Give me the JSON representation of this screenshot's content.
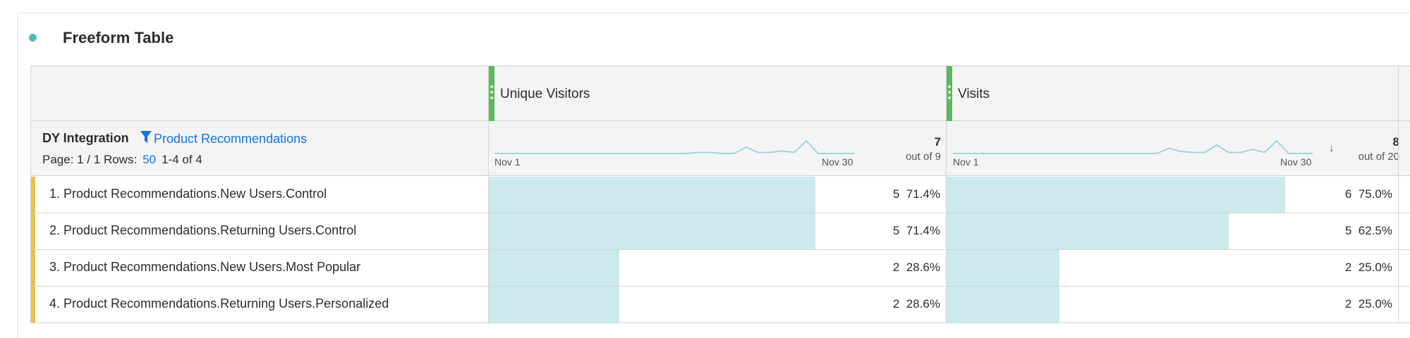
{
  "panel": {
    "title": "Freeform Table"
  },
  "dimension": {
    "title": "DY Integration",
    "filter_label": "Product Recommendations",
    "page_text": "Page: 1 / 1 Rows:",
    "rows_value": "50",
    "range_text": "1-4 of 4"
  },
  "columns": [
    {
      "title": "Unique Visitors",
      "total": "7",
      "total_sub": "out of 9",
      "spark_start": "Nov 1",
      "spark_end": "Nov 30",
      "sparkline": [
        0,
        0,
        0,
        0,
        0,
        0,
        0,
        0,
        0,
        0,
        0,
        0,
        0,
        0,
        0,
        0,
        0,
        0.05,
        0.05,
        0,
        0,
        0.3,
        0.05,
        0.05,
        0.12,
        0.05,
        0.6,
        0,
        0,
        0,
        0
      ],
      "sorted": false
    },
    {
      "title": "Visits",
      "total": "8",
      "total_sub": "out of 20",
      "spark_start": "Nov 1",
      "spark_end": "Nov 30",
      "sparkline": [
        0,
        0,
        0,
        0,
        0,
        0,
        0,
        0,
        0,
        0,
        0,
        0,
        0,
        0,
        0,
        0,
        0,
        0,
        0.25,
        0.1,
        0.05,
        0.05,
        0.4,
        0.05,
        0.05,
        0.2,
        0.05,
        0.6,
        0,
        0,
        0
      ],
      "sorted": true
    }
  ],
  "rows": [
    {
      "label": "1. Product Recommendations.New Users.Control",
      "uv": "5",
      "uv_pct": "71.4%",
      "uv_frac": 0.714,
      "visits": "6",
      "visits_pct": "75.0%",
      "visits_frac": 0.75
    },
    {
      "label": "2. Product Recommendations.Returning Users.Control",
      "uv": "5",
      "uv_pct": "71.4%",
      "uv_frac": 0.714,
      "visits": "5",
      "visits_pct": "62.5%",
      "visits_frac": 0.625
    },
    {
      "label": "3. Product Recommendations.New Users.Most Popular",
      "uv": "2",
      "uv_pct": "28.6%",
      "uv_frac": 0.286,
      "visits": "2",
      "visits_pct": "25.0%",
      "visits_frac": 0.25
    },
    {
      "label": "4. Product Recommendations.Returning Users.Personalized",
      "uv": "2",
      "uv_pct": "28.6%",
      "uv_frac": 0.286,
      "visits": "2",
      "visits_pct": "25.0%",
      "visits_frac": 0.25
    }
  ],
  "colors": {
    "accent": "#4fb8bf",
    "bar": "#cce9ed",
    "row_accent": "#e8c14a",
    "handle": "#5cb85c",
    "link": "#1473e6"
  }
}
